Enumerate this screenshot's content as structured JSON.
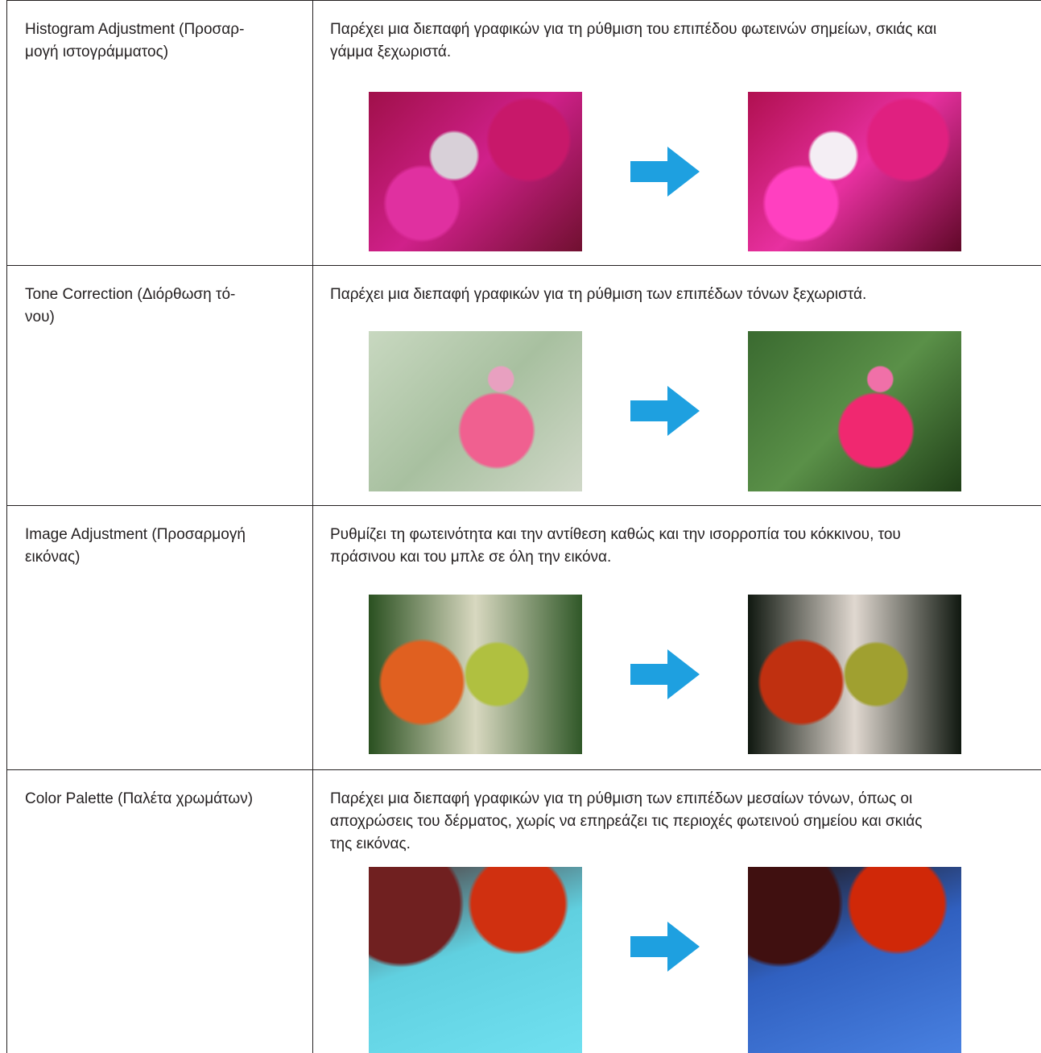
{
  "table": {
    "rows": [
      {
        "name": [
          "Histogram Adjustment (Προσαρ-",
          "μογή ιστογράμματος)"
        ],
        "description": [
          "Παρέχει μια διεπαφή γραφικών για τη ρύθμιση του επιπέδου φωτεινών σημείων, σκιάς και",
          "γάμμα ξεχωριστά."
        ]
      },
      {
        "name": [
          "Tone Correction (Διόρθωση τό-",
          "νου)"
        ],
        "description": [
          "Παρέχει μια διεπαφή γραφικών για τη ρύθμιση των επιπέδων τόνων ξεχωριστά."
        ]
      },
      {
        "name": [
          "Image Adjustment (Προσαρμογή",
          "εικόνας)"
        ],
        "description": [
          "Ρυθμίζει τη φωτεινότητα και την αντίθεση καθώς και την ισορροπία του κόκκινου, του",
          "πράσινου και του μπλε σε όλη την εικόνα."
        ]
      },
      {
        "name": [
          "Color Palette (Παλέτα χρωμάτων)"
        ],
        "description": [
          "Παρέχει μια διεπαφή γραφικών για τη ρύθμιση των επιπέδων μεσαίων τόνων, όπως οι",
          "αποχρώσεις του δέρματος, χωρίς να επηρεάζει τις περιοχές φωτεινού σημείου και σκιάς",
          "της εικόνας."
        ]
      }
    ]
  }
}
